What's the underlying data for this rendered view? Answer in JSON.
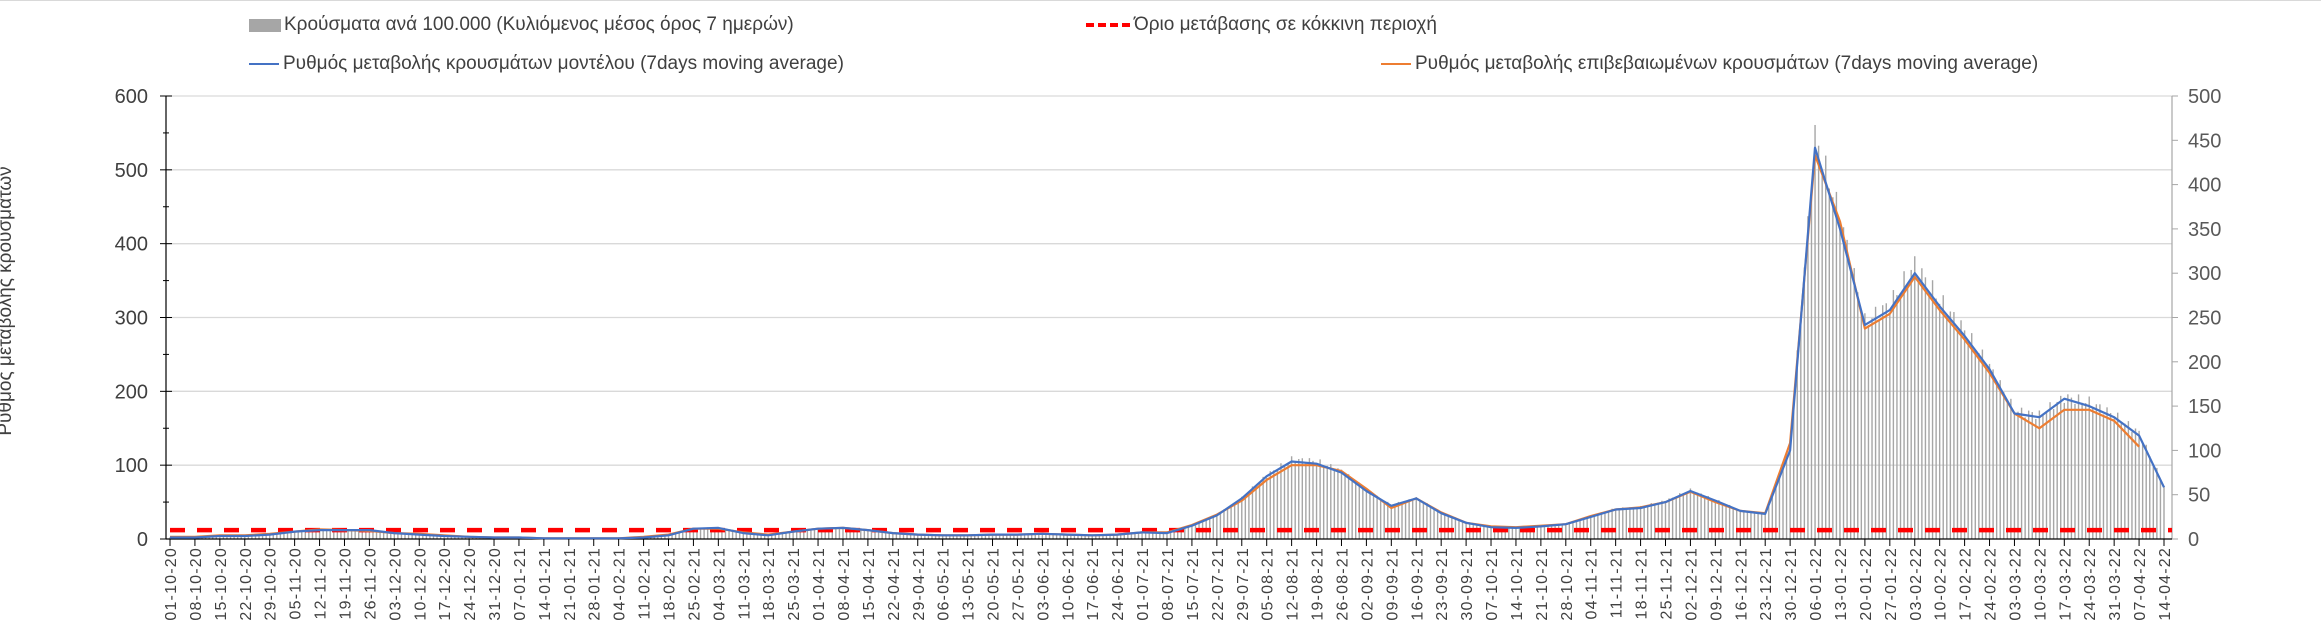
{
  "chart_data": {
    "type": "bar+line",
    "ylabel_left": "Ρυθμός μεταβολής κρουσμάτων",
    "ylim_left": [
      0,
      600
    ],
    "yticks_left": [
      0,
      100,
      200,
      300,
      400,
      500,
      600
    ],
    "ylim_right": [
      0,
      500
    ],
    "yticks_right": [
      0,
      50,
      100,
      150,
      200,
      250,
      300,
      350,
      400,
      450,
      500
    ],
    "grid": true,
    "legend_position": "top",
    "legend": {
      "bars": "Κρούσματα ανά 100.000 (Κυλιόμενος μέσος όρος 7 ημερών)",
      "threshold": "Όριο μετάβασης σε κόκκινη περιοχή",
      "model": "Ρυθμός μεταβολής κρουσμάτων μοντέλου (7days moving average)",
      "confirmed": "Ρυθμός μεταβολής επιβεβαιωμένων κρουσμάτων (7days moving average)"
    },
    "colors": {
      "bars": "#a6a6a6",
      "threshold": "#ff0000",
      "model": "#4472c4",
      "confirmed": "#ed7d31",
      "grid": "#d9d9d9"
    },
    "categories": [
      "01-10-20",
      "08-10-20",
      "15-10-20",
      "22-10-20",
      "29-10-20",
      "05-11-20",
      "12-11-20",
      "19-11-20",
      "26-11-20",
      "03-12-20",
      "10-12-20",
      "17-12-20",
      "24-12-20",
      "31-12-20",
      "07-01-21",
      "14-01-21",
      "21-01-21",
      "28-01-21",
      "04-02-21",
      "11-02-21",
      "18-02-21",
      "25-02-21",
      "04-03-21",
      "11-03-21",
      "18-03-21",
      "25-03-21",
      "01-04-21",
      "08-04-21",
      "15-04-21",
      "22-04-21",
      "29-04-21",
      "06-05-21",
      "13-05-21",
      "20-05-21",
      "27-05-21",
      "03-06-21",
      "10-06-21",
      "17-06-21",
      "24-06-21",
      "01-07-21",
      "08-07-21",
      "15-07-21",
      "22-07-21",
      "29-07-21",
      "05-08-21",
      "12-08-21",
      "19-08-21",
      "26-08-21",
      "02-09-21",
      "09-09-21",
      "16-09-21",
      "23-09-21",
      "30-09-21",
      "07-10-21",
      "14-10-21",
      "21-10-21",
      "28-10-21",
      "04-11-21",
      "11-11-21",
      "18-11-21",
      "25-11-21",
      "02-12-21",
      "09-12-21",
      "16-12-21",
      "23-12-21",
      "30-12-21",
      "06-01-22",
      "13-01-22",
      "20-01-22",
      "27-01-22",
      "03-02-22",
      "10-02-22",
      "17-02-22",
      "24-02-22",
      "03-03-22",
      "10-03-22",
      "17-03-22",
      "24-03-22",
      "31-03-22",
      "07-04-22",
      "14-04-22"
    ],
    "series": [
      {
        "name": "bars",
        "axis": "right",
        "type": "bar",
        "values": [
          2,
          2,
          3,
          3,
          5,
          8,
          10,
          10,
          10,
          7,
          5,
          3,
          2,
          2,
          2,
          1,
          1,
          1,
          1,
          2,
          4,
          12,
          13,
          7,
          4,
          8,
          12,
          13,
          10,
          7,
          5,
          4,
          4,
          5,
          5,
          6,
          5,
          4,
          5,
          8,
          7,
          15,
          27,
          46,
          72,
          90,
          88,
          77,
          55,
          38,
          46,
          30,
          19,
          14,
          13,
          15,
          17,
          26,
          34,
          36,
          43,
          55,
          44,
          32,
          29,
          105,
          455,
          365,
          245,
          265,
          310,
          270,
          235,
          195,
          145,
          140,
          160,
          155,
          140,
          120,
          60
        ]
      },
      {
        "name": "model",
        "axis": "left",
        "type": "line",
        "values": [
          2,
          2,
          4,
          4,
          6,
          10,
          12,
          12,
          12,
          8,
          6,
          4,
          3,
          2,
          2,
          1,
          1,
          1,
          1,
          2,
          5,
          14,
          15,
          8,
          5,
          10,
          14,
          15,
          12,
          8,
          6,
          5,
          5,
          6,
          6,
          7,
          6,
          5,
          6,
          9,
          8,
          18,
          32,
          55,
          85,
          105,
          102,
          90,
          65,
          45,
          55,
          35,
          22,
          16,
          15,
          17,
          20,
          30,
          40,
          42,
          50,
          65,
          52,
          38,
          34,
          120,
          530,
          420,
          290,
          310,
          360,
          315,
          275,
          230,
          170,
          165,
          190,
          180,
          165,
          140,
          70
        ]
      },
      {
        "name": "confirmed",
        "axis": "left",
        "type": "line",
        "values": [
          3,
          3,
          5,
          5,
          7,
          10,
          13,
          12,
          11,
          8,
          7,
          5,
          3,
          2,
          2,
          1,
          1,
          1,
          1,
          3,
          6,
          14,
          14,
          9,
          6,
          10,
          14,
          15,
          12,
          8,
          6,
          5,
          5,
          6,
          6,
          7,
          6,
          5,
          6,
          9,
          9,
          19,
          33,
          52,
          80,
          100,
          100,
          92,
          68,
          42,
          55,
          36,
          22,
          17,
          16,
          18,
          20,
          31,
          40,
          43,
          50,
          64,
          50,
          38,
          35,
          130,
          520,
          430,
          285,
          305,
          355,
          310,
          270,
          225,
          170,
          150,
          175,
          175,
          160,
          125,
          null
        ]
      },
      {
        "name": "threshold",
        "axis": "right",
        "type": "line",
        "value": 10
      }
    ]
  }
}
